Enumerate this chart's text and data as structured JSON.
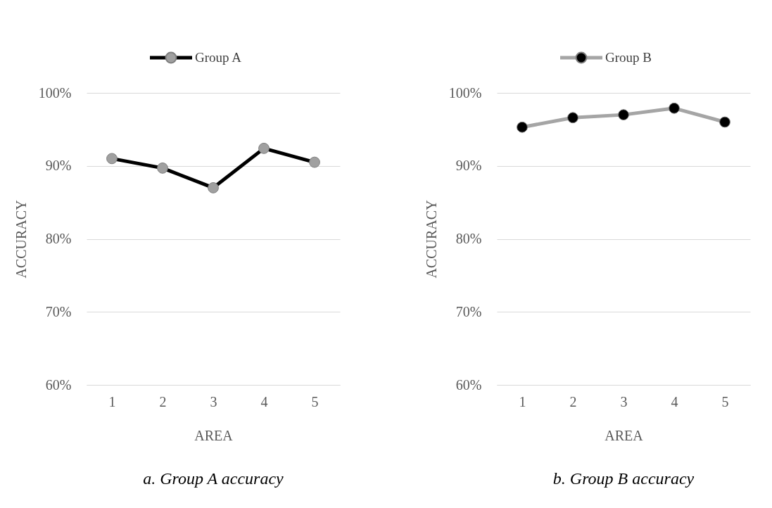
{
  "chart_data": [
    {
      "type": "line",
      "title": "a. Group A accuracy",
      "xlabel": "AREA",
      "ylabel": "ACCURACY",
      "categories": [
        "1",
        "2",
        "3",
        "4",
        "5"
      ],
      "series": [
        {
          "name": "Group A",
          "color": "#000000",
          "colors": [
            "#a0a0a0",
            "#a0a0a0",
            "#a0a0a0",
            "#a0a0a0",
            "#a0a0a0"
          ],
          "values": [
            91.0,
            89.7,
            87.0,
            92.4,
            90.5
          ]
        }
      ],
      "ylim": [
        60,
        100
      ],
      "yticks": [
        {
          "value": 60,
          "label": "60%"
        },
        {
          "value": 70,
          "label": "70%"
        },
        {
          "value": 80,
          "label": "80%"
        },
        {
          "value": 90,
          "label": "90%"
        },
        {
          "value": 100,
          "label": "100%"
        }
      ],
      "grid": "y",
      "legend": "top",
      "marker": "circle"
    },
    {
      "type": "line",
      "title": "b. Group B accuracy",
      "xlabel": "AREA",
      "ylabel": "ACCURACY",
      "categories": [
        "1",
        "2",
        "3",
        "4",
        "5"
      ],
      "series": [
        {
          "name": "Group B",
          "color": "#a5a5a5",
          "colors": [
            "#000000",
            "#000000",
            "#000000",
            "#000000",
            "#000000"
          ],
          "values": [
            95.3,
            96.6,
            97.0,
            97.9,
            96.0
          ]
        }
      ],
      "ylim": [
        60,
        100
      ],
      "yticks": [
        {
          "value": 60,
          "label": "60%"
        },
        {
          "value": 70,
          "label": "70%"
        },
        {
          "value": 80,
          "label": "80%"
        },
        {
          "value": 90,
          "label": "90%"
        },
        {
          "value": 100,
          "label": "100%"
        }
      ],
      "grid": "y",
      "legend": "top",
      "marker": "circle"
    }
  ]
}
